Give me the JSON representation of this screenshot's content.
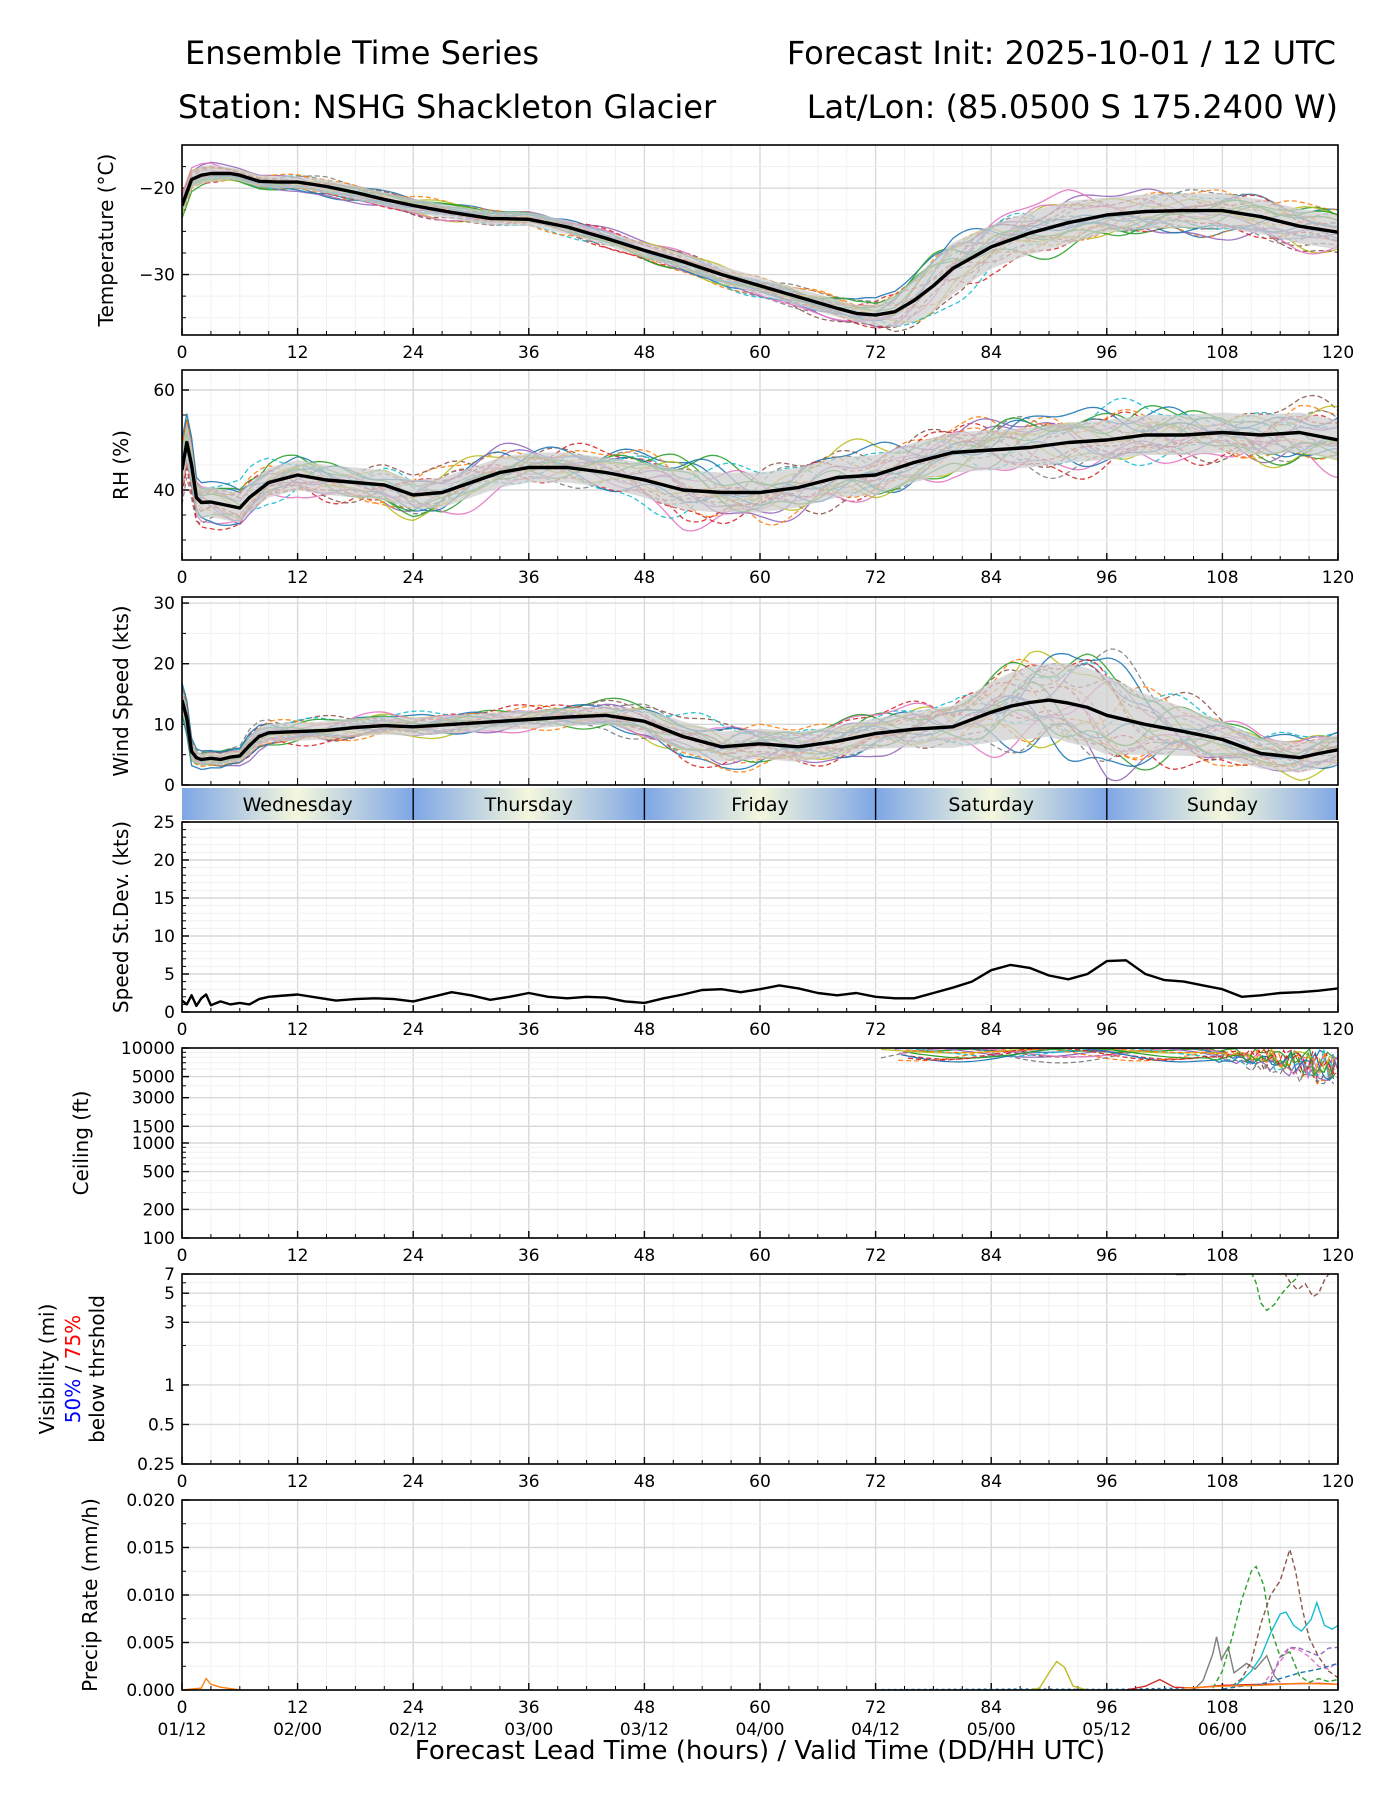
{
  "header": {
    "title_left": "Ensemble Time Series",
    "title_right": "Forecast Init: 2025-10-01 / 12 UTC",
    "station": "Station: NSHG Shackleton Glacier",
    "latlon": "Lat/Lon: (85.0500 S 175.2400 W)"
  },
  "chart_data": [
    {
      "type": "line",
      "id": "temperature",
      "ylabel": "Temperature (°C)",
      "ylim": [
        -37,
        -15
      ],
      "yticks": [
        -30,
        -20
      ],
      "ytick_labels": [
        "−30",
        "−20"
      ],
      "xlim": [
        0,
        120
      ],
      "xticks": [
        0,
        12,
        24,
        36,
        48,
        60,
        72,
        84,
        96,
        108,
        120
      ],
      "x": [
        0,
        1,
        2,
        3,
        5,
        6,
        8,
        10,
        12,
        15,
        18,
        21,
        24,
        28,
        32,
        36,
        40,
        44,
        48,
        52,
        56,
        60,
        64,
        68,
        70,
        72,
        74,
        76,
        78,
        80,
        84,
        88,
        92,
        96,
        100,
        104,
        108,
        112,
        116,
        120
      ],
      "mean": [
        -22,
        -19,
        -18.5,
        -18.3,
        -18.3,
        -18.5,
        -19.2,
        -19.3,
        -19.3,
        -19.8,
        -20.5,
        -21.3,
        -22,
        -22.8,
        -23.5,
        -23.6,
        -24.5,
        -25.8,
        -27.2,
        -28.5,
        -30,
        -31.3,
        -32.6,
        -33.9,
        -34.5,
        -34.7,
        -34.3,
        -33,
        -31.3,
        -29.3,
        -26.8,
        -25.2,
        -24,
        -23.1,
        -22.7,
        -22.6,
        -22.6,
        -23.3,
        -24.4,
        -25.1
      ],
      "spread_band": [
        1,
        1,
        1,
        1,
        0.7,
        0.7,
        0.7,
        0.7,
        0.7,
        0.8,
        0.8,
        0.8,
        0.8,
        0.8,
        0.8,
        0.8,
        0.8,
        0.8,
        0.9,
        0.9,
        1,
        1,
        1,
        1,
        1,
        1.2,
        1.8,
        2.5,
        3,
        3,
        2.5,
        2.5,
        2.5,
        2,
        2,
        2,
        2,
        2,
        2,
        2
      ]
    },
    {
      "type": "line",
      "id": "rh",
      "ylabel": "RH (%)",
      "ylim": [
        26,
        64
      ],
      "yticks": [
        40,
        60
      ],
      "ytick_labels": [
        "40",
        "60"
      ],
      "xlim": [
        0,
        120
      ],
      "xticks": [
        0,
        12,
        24,
        36,
        48,
        60,
        72,
        84,
        96,
        108,
        120
      ],
      "x": [
        0,
        0.5,
        1,
        1.5,
        2,
        3,
        4,
        5,
        6,
        7,
        9,
        12,
        15,
        18,
        21,
        24,
        27,
        30,
        33,
        36,
        40,
        44,
        48,
        52,
        56,
        60,
        64,
        68,
        72,
        76,
        80,
        84,
        88,
        92,
        96,
        100,
        104,
        108,
        112,
        116,
        120
      ],
      "mean": [
        44,
        49.5,
        45,
        38.5,
        37.5,
        37.6,
        37.2,
        36.8,
        36.4,
        38.5,
        41.5,
        43,
        42,
        41.5,
        41,
        39,
        39.5,
        41.5,
        43.5,
        44.5,
        44.5,
        43.5,
        42,
        40,
        39.5,
        39.5,
        40.5,
        42.5,
        43,
        45.5,
        47.5,
        48,
        48.5,
        49.5,
        50,
        51,
        51,
        51.5,
        51,
        51.5,
        50
      ],
      "spread_band": [
        4,
        4,
        4,
        3,
        3,
        3,
        3,
        3,
        3,
        3,
        3,
        3,
        3,
        3,
        3,
        3,
        3,
        3,
        3,
        3,
        3,
        3,
        3.5,
        4,
        4,
        4,
        4,
        4,
        4,
        4,
        4,
        4,
        4,
        4,
        4,
        4,
        4,
        4,
        4,
        4,
        4
      ]
    },
    {
      "type": "line",
      "id": "wind_speed",
      "ylabel": "Wind Speed (kts)",
      "ylim": [
        0,
        31
      ],
      "yticks": [
        0,
        10,
        20,
        30
      ],
      "ytick_labels": [
        "0",
        "10",
        "20",
        "30"
      ],
      "xlim": [
        0,
        120
      ],
      "x": [
        0,
        0.5,
        1,
        1.5,
        2,
        3,
        4,
        5,
        6,
        7,
        8,
        9,
        12,
        15,
        18,
        21,
        24,
        28,
        32,
        36,
        40,
        44,
        48,
        52,
        56,
        60,
        64,
        68,
        72,
        76,
        80,
        84,
        86,
        88,
        90,
        92,
        94,
        96,
        100,
        104,
        108,
        112,
        116,
        118,
        120
      ],
      "mean": [
        14,
        11,
        5.5,
        4.5,
        4.2,
        4.4,
        4.2,
        4.6,
        4.8,
        6.5,
        8,
        8.6,
        8.8,
        9,
        9.5,
        9.8,
        9.6,
        10,
        10.4,
        10.8,
        11.2,
        11.5,
        10.5,
        8,
        6.3,
        6.8,
        6.3,
        7.2,
        8.5,
        9.2,
        9.6,
        12,
        13,
        13.6,
        14,
        13.5,
        12.8,
        11.5,
        10,
        8.8,
        7.5,
        5.2,
        4.5,
        5.2,
        5.8
      ],
      "spread_band": [
        2,
        2,
        1.5,
        1,
        1,
        1,
        1,
        1,
        1,
        1.5,
        1.5,
        1.5,
        1.5,
        1.5,
        1.5,
        1.5,
        1.5,
        1.5,
        1.5,
        1.5,
        1.5,
        1.5,
        2,
        2.5,
        2.5,
        2.5,
        2.5,
        2.5,
        2.5,
        3,
        3.5,
        5,
        5.5,
        6,
        6,
        6.5,
        6.5,
        6.5,
        5,
        4,
        3,
        2.5,
        2.5,
        2.5,
        2.5
      ]
    },
    {
      "type": "line",
      "id": "speed_stdev",
      "ylabel": "Speed St.Dev. (kts)",
      "ylim": [
        0,
        25
      ],
      "yticks": [
        0,
        5,
        10,
        15,
        20,
        25
      ],
      "ytick_labels": [
        "0",
        "5",
        "10",
        "15",
        "20",
        "25"
      ],
      "xlim": [
        0,
        120
      ],
      "x": [
        0,
        0.5,
        1,
        1.5,
        2,
        2.5,
        3,
        4,
        5,
        6,
        7,
        8,
        9,
        10,
        12,
        14,
        16,
        18,
        20,
        22,
        24,
        26,
        28,
        30,
        32,
        34,
        36,
        38,
        40,
        42,
        44,
        46,
        48,
        50,
        52,
        54,
        56,
        58,
        60,
        62,
        64,
        66,
        68,
        70,
        72,
        74,
        76,
        78,
        80,
        82,
        84,
        86,
        88,
        90,
        92,
        94,
        96,
        98,
        100,
        102,
        104,
        106,
        108,
        110,
        112,
        114,
        116,
        118,
        120
      ],
      "values": [
        1.5,
        1.0,
        2.2,
        0.8,
        1.8,
        2.3,
        0.9,
        1.4,
        1.0,
        1.2,
        1.0,
        1.7,
        2.0,
        2.1,
        2.3,
        1.9,
        1.5,
        1.7,
        1.8,
        1.7,
        1.4,
        2.0,
        2.6,
        2.2,
        1.6,
        2.0,
        2.5,
        2.0,
        1.8,
        2.0,
        1.9,
        1.4,
        1.2,
        1.8,
        2.3,
        2.9,
        3.0,
        2.6,
        3.0,
        3.5,
        3.1,
        2.5,
        2.2,
        2.5,
        2.0,
        1.8,
        1.8,
        2.5,
        3.2,
        4.0,
        5.5,
        6.2,
        5.8,
        4.8,
        4.3,
        5.0,
        6.7,
        6.8,
        5.0,
        4.2,
        4.0,
        3.5,
        3.0,
        2.0,
        2.2,
        2.5,
        2.6,
        2.8,
        3.1
      ]
    },
    {
      "type": "line",
      "id": "ceiling",
      "ylabel": "Ceiling (ft)",
      "yscale": "log",
      "ylim": [
        100,
        10000
      ],
      "yticks": [
        100,
        200,
        500,
        1000,
        1500,
        3000,
        5000,
        10000
      ],
      "ytick_labels": [
        "100",
        "200",
        "500",
        "1000",
        "1500",
        "3000",
        "5000",
        "10000"
      ],
      "xlim": [
        0,
        120
      ]
    },
    {
      "type": "line",
      "id": "visibility",
      "ylabel_lines": [
        "Visibility (mi)",
        "50%",
        " / ",
        "75%",
        "below thrshold"
      ],
      "yscale": "log",
      "ylim": [
        0.25,
        7
      ],
      "yticks": [
        0.25,
        0.5,
        1,
        3,
        5,
        7
      ],
      "ytick_labels": [
        "0.25",
        "0.5",
        "1",
        "3",
        "5",
        "7"
      ],
      "xlim": [
        0,
        120
      ]
    },
    {
      "type": "line",
      "id": "precip",
      "ylabel": "Precip Rate (mm/h)",
      "ylim": [
        0,
        0.02
      ],
      "yticks": [
        0,
        0.005,
        0.01,
        0.015,
        0.02
      ],
      "ytick_labels": [
        "0.000",
        "0.005",
        "0.010",
        "0.015",
        "0.020"
      ],
      "xlim": [
        0,
        120
      ],
      "xlabel": "Forecast Lead Time (hours) / Valid Time (DD/HH UTC)",
      "valid_time_labels": [
        "01/12",
        "02/00",
        "02/12",
        "03/00",
        "03/12",
        "04/00",
        "04/12",
        "05/00",
        "05/12",
        "06/00",
        "06/12"
      ]
    }
  ],
  "day_bar": {
    "days": [
      "Wednesday",
      "Thursday",
      "Friday",
      "Saturday",
      "Sunday"
    ],
    "boundaries_hours": [
      0,
      24,
      48,
      72,
      96,
      120
    ]
  },
  "colors": {
    "mean": "#000000",
    "band": "#cfcfcf",
    "grid": "#e3e3e3",
    "members": [
      "#1f77b4",
      "#ff7f0e",
      "#2ca02c",
      "#d62728",
      "#9467bd",
      "#8c564b",
      "#e377c2",
      "#7f7f7f",
      "#bcbd22",
      "#17becf"
    ],
    "day_blue": "#7ea6e6",
    "day_light": "#f4f7dc",
    "vis_50": "#0000ff",
    "vis_75": "#ff0000"
  }
}
